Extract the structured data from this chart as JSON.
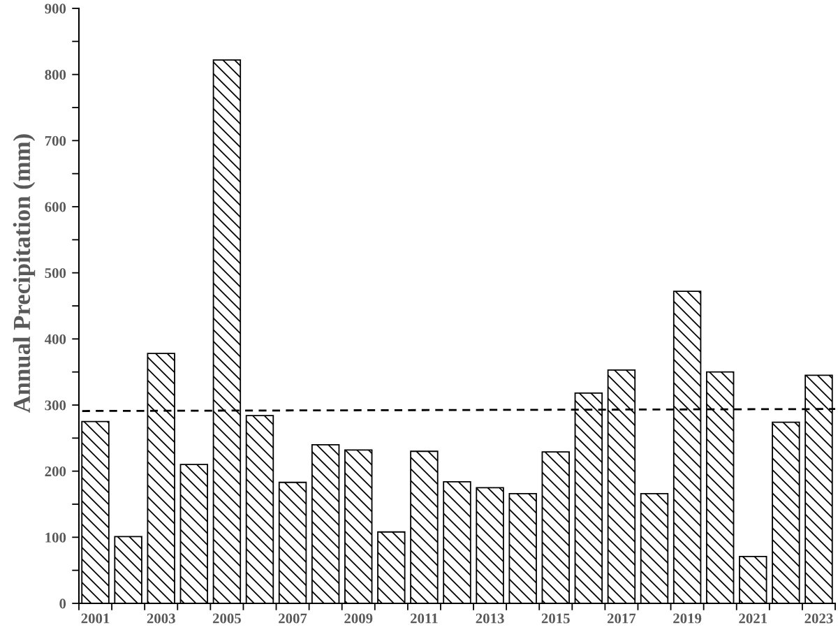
{
  "chart_data": {
    "type": "bar",
    "ylabel": "Annual Precipitation (mm)",
    "x": [
      2001,
      2002,
      2003,
      2004,
      2005,
      2006,
      2007,
      2008,
      2009,
      2010,
      2011,
      2012,
      2013,
      2014,
      2015,
      2016,
      2017,
      2018,
      2019,
      2020,
      2021,
      2022,
      2023
    ],
    "series": [
      {
        "color": "#000000",
        "values": [
          275,
          101,
          378,
          210,
          822,
          284,
          183,
          240,
          232,
          108,
          230,
          184,
          175,
          166,
          229,
          318,
          353,
          166,
          472,
          350,
          71,
          274,
          345
        ]
      },
      {
        "type": "line",
        "x": [
          2000.6,
          2023.5
        ],
        "values": [
          291,
          294
        ],
        "color": "#000000",
        "line_style": "dashed",
        "marker": "none"
      }
    ],
    "xlim": [
      2000.5,
      2023.5
    ],
    "xticks": [
      {
        "value": 2000.5,
        "label": null
      },
      2001,
      {
        "value": 2001.5,
        "label": null
      },
      {
        "value": 2002.5,
        "label": null
      },
      2003,
      {
        "value": 2003.5,
        "label": null
      },
      {
        "value": 2004.5,
        "label": null
      },
      2005,
      {
        "value": 2005.5,
        "label": null
      },
      {
        "value": 2006.5,
        "label": null
      },
      2007,
      {
        "value": 2007.5,
        "label": null
      },
      {
        "value": 2008.5,
        "label": null
      },
      2009,
      {
        "value": 2009.5,
        "label": null
      },
      {
        "value": 2010.5,
        "label": null
      },
      2011,
      {
        "value": 2011.5,
        "label": null
      },
      {
        "value": 2012.5,
        "label": null
      },
      2013,
      {
        "value": 2013.5,
        "label": null
      },
      {
        "value": 2014.5,
        "label": null
      },
      2015,
      {
        "value": 2015.5,
        "label": null
      },
      {
        "value": 2016.5,
        "label": null
      },
      2017,
      {
        "value": 2017.5,
        "label": null
      },
      {
        "value": 2018.5,
        "label": null
      },
      2019,
      {
        "value": 2019.5,
        "label": null
      },
      {
        "value": 2020.5,
        "label": null
      },
      2021,
      {
        "value": 2021.5,
        "label": null
      },
      {
        "value": 2022.5,
        "label": null
      },
      2023,
      {
        "value": 2023.5,
        "label": null
      }
    ],
    "ylim": [
      0,
      900
    ],
    "yticks": [
      0,
      {
        "value": 50,
        "label": null
      },
      100,
      {
        "value": 150,
        "label": null
      },
      200,
      {
        "value": 250,
        "label": null
      },
      300,
      {
        "value": 350,
        "label": null
      },
      400,
      {
        "value": 450,
        "label": null
      },
      500,
      {
        "value": 550,
        "label": null
      },
      600,
      {
        "value": 650,
        "label": null
      },
      700,
      {
        "value": 750,
        "label": null
      },
      800,
      {
        "value": 850,
        "label": null
      },
      900
    ],
    "grid": false,
    "legend": false
  }
}
